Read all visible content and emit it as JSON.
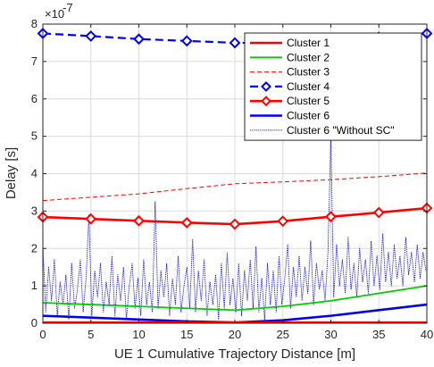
{
  "chart_data": {
    "type": "line",
    "title": "",
    "xlabel": "UE 1 Cumulative Trajectory Distance [m]",
    "ylabel": "Delay [s]",
    "y_exponent_label": "×10",
    "y_exponent_power": "-7",
    "xlim": [
      0,
      40
    ],
    "ylim": [
      0,
      8
    ],
    "y_unit_scale": 1e-07,
    "xticks": [
      0,
      5,
      10,
      15,
      20,
      25,
      30,
      35,
      40
    ],
    "yticks": [
      0,
      1,
      2,
      3,
      4,
      5,
      6,
      7,
      8
    ],
    "grid": true,
    "legend_position": "top-right",
    "series": [
      {
        "name": "Cluster 1",
        "color": "#ff0000",
        "style": "solid-thick",
        "marker": "none",
        "x": [
          0,
          5,
          10,
          15,
          20,
          25,
          30,
          35,
          40
        ],
        "y": [
          0.02,
          0.02,
          0.02,
          0.02,
          0.02,
          0.02,
          0.02,
          0.02,
          0.02
        ]
      },
      {
        "name": "Cluster 2",
        "color": "#00cc00",
        "style": "solid",
        "marker": "none",
        "x": [
          0,
          5,
          10,
          15,
          20,
          25,
          30,
          35,
          40
        ],
        "y": [
          0.55,
          0.5,
          0.45,
          0.4,
          0.35,
          0.45,
          0.6,
          0.8,
          1.0
        ]
      },
      {
        "name": "Cluster 3",
        "color": "#ff0000",
        "style": "dashed-thin",
        "marker": "none",
        "x": [
          0,
          5,
          10,
          15,
          20,
          25,
          30,
          35,
          40
        ],
        "y": [
          3.28,
          3.37,
          3.46,
          3.6,
          3.73,
          3.78,
          3.84,
          3.92,
          4.02
        ]
      },
      {
        "name": "Cluster 4",
        "color": "#0000ee",
        "style": "dashed-thick",
        "marker": "diamond-open",
        "x": [
          0,
          5,
          10,
          15,
          20,
          25,
          30,
          35,
          40
        ],
        "y": [
          7.75,
          7.68,
          7.6,
          7.55,
          7.5,
          7.5,
          7.55,
          7.65,
          7.75
        ]
      },
      {
        "name": "Cluster 5",
        "color": "#ff0000",
        "style": "solid-thick",
        "marker": "diamond-open",
        "x": [
          0,
          5,
          10,
          15,
          20,
          25,
          30,
          35,
          40
        ],
        "y": [
          2.84,
          2.79,
          2.74,
          2.69,
          2.65,
          2.73,
          2.85,
          2.96,
          3.08
        ]
      },
      {
        "name": "Cluster 6",
        "color": "#0000ee",
        "style": "solid-thick",
        "marker": "none",
        "x": [
          0,
          5,
          10,
          15,
          20,
          25,
          30,
          35,
          40
        ],
        "y": [
          0.2,
          0.15,
          0.1,
          0.05,
          0.02,
          0.08,
          0.2,
          0.35,
          0.5
        ]
      },
      {
        "name": "Cluster 6 \"Without SC\"",
        "color": "#0000ee",
        "style": "dotted-thin",
        "marker": "none",
        "x": [
          0,
          0.3,
          0.6,
          0.9,
          1.2,
          1.5,
          1.8,
          2.1,
          2.4,
          2.7,
          3.0,
          3.3,
          3.6,
          3.9,
          4.2,
          4.5,
          4.8,
          5.1,
          5.4,
          5.7,
          6.0,
          6.3,
          6.6,
          6.9,
          7.2,
          7.5,
          7.8,
          8.1,
          8.4,
          8.7,
          9.0,
          9.3,
          9.6,
          9.9,
          10.2,
          10.5,
          10.8,
          11.1,
          11.4,
          11.7,
          12.0,
          12.3,
          12.6,
          12.9,
          13.2,
          13.5,
          13.8,
          14.1,
          14.4,
          14.7,
          15.0,
          15.3,
          15.6,
          15.9,
          16.2,
          16.5,
          16.8,
          17.1,
          17.4,
          17.7,
          18.0,
          18.3,
          18.6,
          18.9,
          19.2,
          19.5,
          19.8,
          20.1,
          20.4,
          20.7,
          21.0,
          21.3,
          21.6,
          21.9,
          22.2,
          22.5,
          22.8,
          23.1,
          23.4,
          23.7,
          24.0,
          24.3,
          24.6,
          24.9,
          25.2,
          25.5,
          25.8,
          26.1,
          26.4,
          26.7,
          27.0,
          27.3,
          27.6,
          27.9,
          28.2,
          28.5,
          28.8,
          29.1,
          29.4,
          29.7,
          30.0,
          30.3,
          30.6,
          30.9,
          31.2,
          31.5,
          31.8,
          32.1,
          32.4,
          32.7,
          33.0,
          33.3,
          33.6,
          33.9,
          34.2,
          34.5,
          34.8,
          35.1,
          35.4,
          35.7,
          36.0,
          36.3,
          36.6,
          36.9,
          37.2,
          37.5,
          37.8,
          38.1,
          38.4,
          38.7,
          39.0,
          39.3,
          39.6,
          39.9
        ],
        "y": [
          2.1,
          0.3,
          1.5,
          0.6,
          1.7,
          0.2,
          1.1,
          0.5,
          1.3,
          0.1,
          1.6,
          0.4,
          0.9,
          1.7,
          0.3,
          1.2,
          2.9,
          0.2,
          1.4,
          0.7,
          1.6,
          0.3,
          1.1,
          0.5,
          1.8,
          0.2,
          1.3,
          0.6,
          1.5,
          0.1,
          1.0,
          1.6,
          0.4,
          1.2,
          0.2,
          1.7,
          0.5,
          1.1,
          0.3,
          3.25,
          0.4,
          1.4,
          0.7,
          1.6,
          0.2,
          1.2,
          0.5,
          1.8,
          0.3,
          1.0,
          1.5,
          0.4,
          2.25,
          0.3,
          1.4,
          0.6,
          1.7,
          0.2,
          1.1,
          0.5,
          1.3,
          0.1,
          1.6,
          0.4,
          1.9,
          0.5,
          1.2,
          0.3,
          1.6,
          0.2,
          1.4,
          0.6,
          1.7,
          0.4,
          2.05,
          0.3,
          1.2,
          0.1,
          1.6,
          0.5,
          1.4,
          0.3,
          1.8,
          0.5,
          1.2,
          2.1,
          0.4,
          1.5,
          0.7,
          1.8,
          0.6,
          1.5,
          0.8,
          2.2,
          0.5,
          1.6,
          0.9,
          1.4,
          0.6,
          1.9,
          5.0,
          0.7,
          2.1,
          1.0,
          1.7,
          0.8,
          2.3,
          0.9,
          1.6,
          0.7,
          2.0,
          1.1,
          1.7,
          0.8,
          2.2,
          1.0,
          1.8,
          0.9,
          2.4,
          1.1,
          1.9,
          1.0,
          2.1,
          1.2,
          1.8,
          1.0,
          2.3,
          1.3,
          1.9,
          1.1,
          2.1,
          1.2,
          1.9,
          1.4
        ]
      }
    ]
  }
}
